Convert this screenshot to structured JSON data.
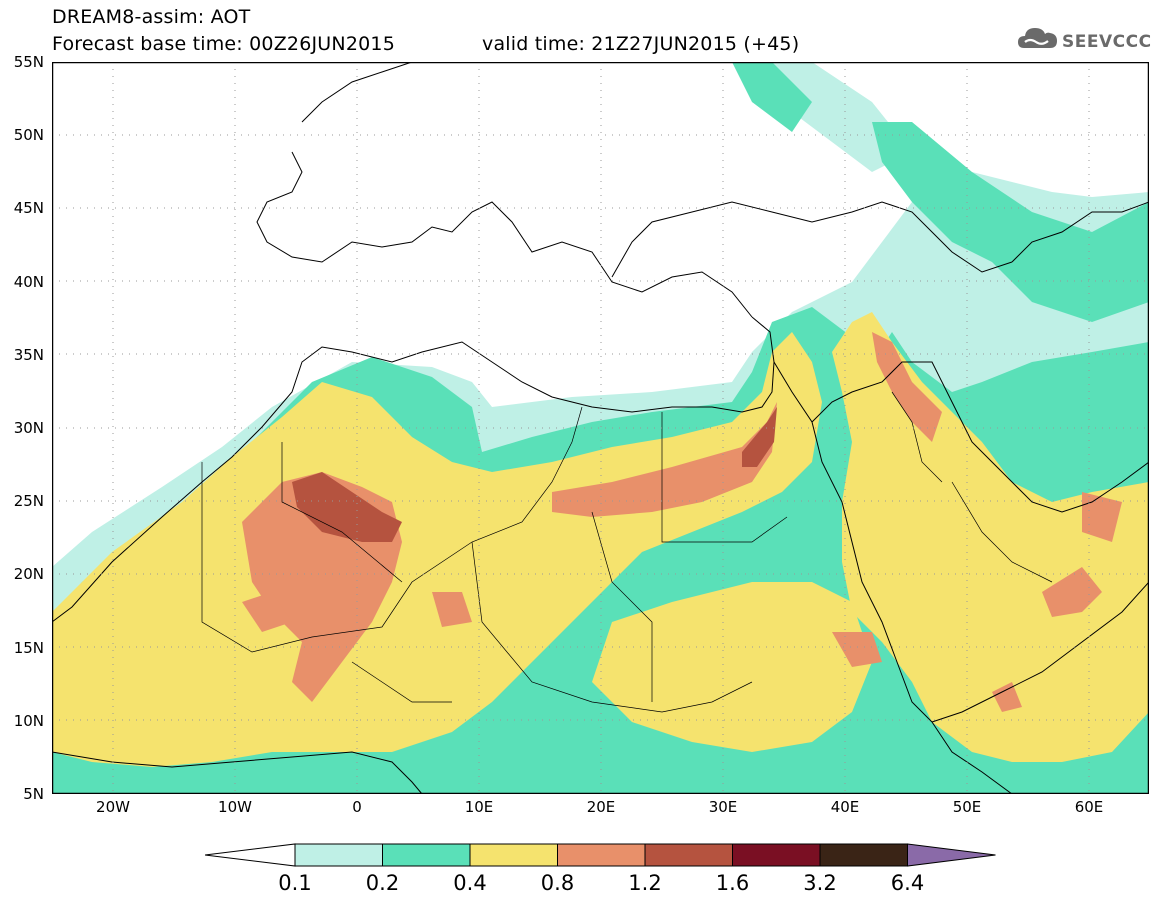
{
  "title_line1": "DREAM8-assim: AOT",
  "title_line2": "Forecast base time: 00Z26JUN2015",
  "valid_time": "valid time: 21Z27JUN2015 (+45)",
  "logo_text": "SEEVCCC",
  "lat_labels": [
    "55N",
    "50N",
    "45N",
    "40N",
    "35N",
    "30N",
    "25N",
    "20N",
    "15N",
    "10N",
    "5N"
  ],
  "lon_labels": [
    "20W",
    "10W",
    "0",
    "10E",
    "20E",
    "30E",
    "40E",
    "50E",
    "60E"
  ],
  "legend": {
    "levels": [
      "0.1",
      "0.2",
      "0.4",
      "0.8",
      "1.2",
      "1.6",
      "3.2",
      "6.4"
    ],
    "colors": [
      "#ffffff",
      "#bff0e6",
      "#5ae0b8",
      "#f5e36e",
      "#e8906a",
      "#b5533f",
      "#7a0f23",
      "#3a2416",
      "#8a6aa8"
    ]
  }
}
